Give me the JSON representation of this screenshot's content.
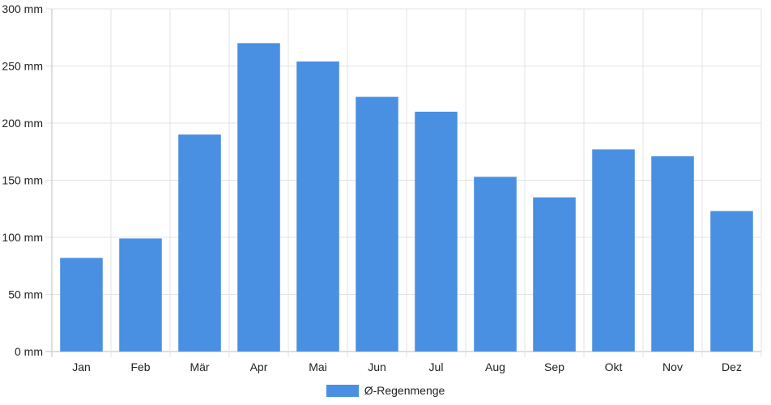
{
  "chart_data": {
    "type": "bar",
    "categories": [
      "Jan",
      "Feb",
      "Mär",
      "Apr",
      "Mai",
      "Jun",
      "Jul",
      "Aug",
      "Sep",
      "Okt",
      "Nov",
      "Dez"
    ],
    "series": [
      {
        "name": "Ø-Regenmenge",
        "values": [
          82,
          99,
          190,
          270,
          254,
          223,
          210,
          153,
          135,
          177,
          171,
          123
        ],
        "color": "#4a90e2"
      }
    ],
    "y_ticks": [
      0,
      50,
      100,
      150,
      200,
      250,
      300
    ],
    "y_unit": "mm",
    "ylim": [
      0,
      300
    ],
    "title": "",
    "xlabel": "",
    "ylabel": "",
    "grid": true,
    "legend_position": "bottom"
  }
}
